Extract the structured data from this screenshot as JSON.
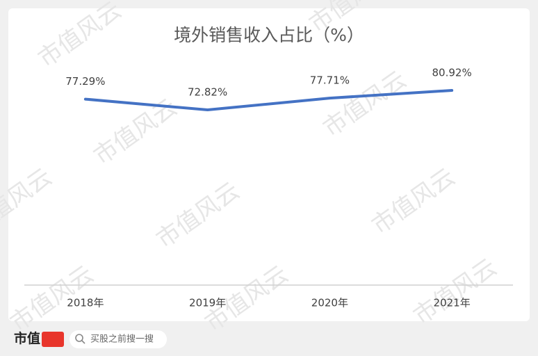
{
  "chart_data": {
    "type": "line",
    "title": "境外销售收入占比（%）",
    "categories": [
      "2018年",
      "2019年",
      "2020年",
      "2021年"
    ],
    "values": [
      77.29,
      72.82,
      77.71,
      80.92
    ],
    "value_labels": [
      "77.29%",
      "72.82%",
      "77.71%",
      "80.92%"
    ],
    "color": "#4472c4",
    "ylim": [
      0,
      100
    ]
  },
  "watermark": "市值风云",
  "footer": {
    "brand": "市值",
    "search": "买股之前搜一搜"
  }
}
